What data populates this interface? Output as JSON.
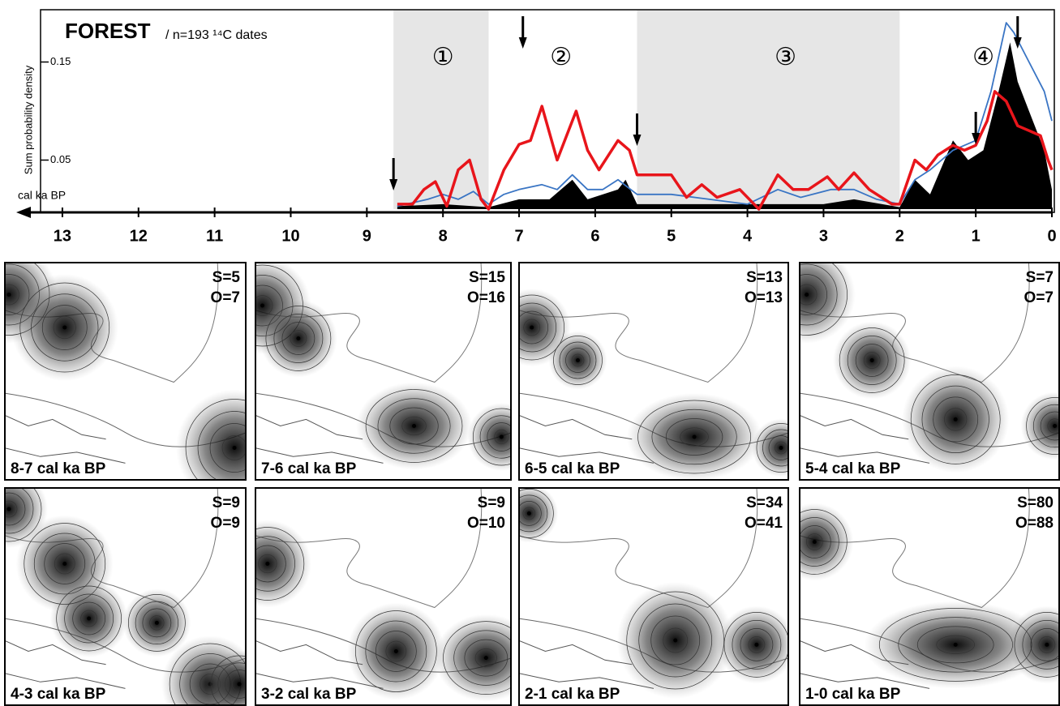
{
  "chart_data": {
    "type": "line",
    "title": "FOREST",
    "subtitle": "/ n=193 ¹⁴C dates",
    "ylabel": "Sum probability density",
    "xlabel": "cal ka BP",
    "xlim": [
      13.5,
      0
    ],
    "ylim": [
      0,
      0.2
    ],
    "xticks": [
      13,
      12,
      11,
      10,
      9,
      8,
      7,
      6,
      5,
      4,
      3,
      2,
      1,
      0
    ],
    "yticks": [
      0.05,
      0.15
    ],
    "shaded": [
      [
        8.65,
        7.4
      ],
      [
        5.45,
        2.0
      ]
    ],
    "periods": [
      {
        "label": "①",
        "x": 8.0
      },
      {
        "label": "②",
        "x": 6.45
      },
      {
        "label": "③",
        "x": 3.5
      },
      {
        "label": "④",
        "x": 0.9
      }
    ],
    "arrows": [
      8.65,
      6.95,
      5.45,
      1.0,
      0.45
    ],
    "series": [
      {
        "color": "#000000",
        "fill": true,
        "x": [
          8.6,
          8.0,
          7.4,
          7.0,
          6.6,
          6.3,
          6.1,
          5.7,
          5.6,
          5.45,
          4.5,
          3.0,
          2.6,
          2.0,
          1.8,
          1.6,
          1.3,
          1.1,
          0.9,
          0.7,
          0.55,
          0.45,
          0.3,
          0.1,
          0
        ],
        "values": [
          0.003,
          0.005,
          0.002,
          0.01,
          0.01,
          0.03,
          0.01,
          0.02,
          0.03,
          0.005,
          0.005,
          0.005,
          0.01,
          0.002,
          0.03,
          0.015,
          0.07,
          0.05,
          0.06,
          0.12,
          0.17,
          0.13,
          0.1,
          0.06,
          0.02
        ]
      },
      {
        "color": "#3a75c4",
        "x": [
          8.6,
          8.2,
          8.0,
          7.8,
          7.6,
          7.4,
          7.2,
          7.0,
          6.7,
          6.5,
          6.3,
          6.1,
          5.9,
          5.7,
          5.45,
          5.0,
          4.5,
          4.0,
          3.6,
          3.3,
          2.9,
          2.6,
          2.3,
          2.0,
          1.8,
          1.6,
          1.3,
          1.0,
          0.8,
          0.6,
          0.5,
          0.3,
          0.1,
          0
        ],
        "values": [
          0.003,
          0.01,
          0.015,
          0.01,
          0.018,
          0.005,
          0.015,
          0.02,
          0.025,
          0.02,
          0.035,
          0.02,
          0.02,
          0.03,
          0.015,
          0.015,
          0.01,
          0.005,
          0.02,
          0.012,
          0.02,
          0.02,
          0.01,
          0.005,
          0.03,
          0.04,
          0.06,
          0.07,
          0.12,
          0.19,
          0.18,
          0.15,
          0.12,
          0.09
        ]
      },
      {
        "color": "#e8151b",
        "x": [
          8.6,
          8.4,
          8.25,
          8.1,
          7.95,
          7.8,
          7.65,
          7.5,
          7.4,
          7.2,
          7.0,
          6.85,
          6.7,
          6.5,
          6.35,
          6.25,
          6.1,
          5.95,
          5.7,
          5.55,
          5.45,
          5.0,
          4.8,
          4.6,
          4.4,
          4.1,
          3.85,
          3.6,
          3.4,
          3.2,
          2.95,
          2.8,
          2.6,
          2.4,
          2.1,
          2.0,
          1.8,
          1.65,
          1.5,
          1.3,
          1.15,
          1.0,
          0.85,
          0.75,
          0.6,
          0.45,
          0.3,
          0.15,
          0.05,
          0
        ],
        "values": [
          0.005,
          0.005,
          0.02,
          0.028,
          0.003,
          0.04,
          0.05,
          0.01,
          0.0,
          0.04,
          0.066,
          0.07,
          0.105,
          0.05,
          0.08,
          0.1,
          0.06,
          0.04,
          0.07,
          0.06,
          0.035,
          0.035,
          0.012,
          0.025,
          0.012,
          0.02,
          0.0,
          0.035,
          0.02,
          0.02,
          0.033,
          0.02,
          0.037,
          0.02,
          0.005,
          0.005,
          0.05,
          0.04,
          0.055,
          0.065,
          0.06,
          0.065,
          0.09,
          0.12,
          0.11,
          0.085,
          0.08,
          0.075,
          0.05,
          0.04
        ]
      }
    ]
  },
  "panels": [
    {
      "label": "8-7 cal ka BP",
      "s": "S=5",
      "o": "O=7"
    },
    {
      "label": "7-6 cal ka BP",
      "s": "S=15",
      "o": "O=16"
    },
    {
      "label": "6-5 cal ka BP",
      "s": "S=13",
      "o": "O=13"
    },
    {
      "label": "5-4 cal ka BP",
      "s": "S=7",
      "o": "O=7"
    },
    {
      "label": "4-3 cal ka BP",
      "s": "S=9",
      "o": "O=9"
    },
    {
      "label": "3-2 cal ka BP",
      "s": "S=9",
      "o": "O=10"
    },
    {
      "label": "2-1 cal ka BP",
      "s": "S=34",
      "o": "O=41"
    },
    {
      "label": "1-0 cal ka BP",
      "s": "S=80",
      "o": "O=88"
    }
  ]
}
